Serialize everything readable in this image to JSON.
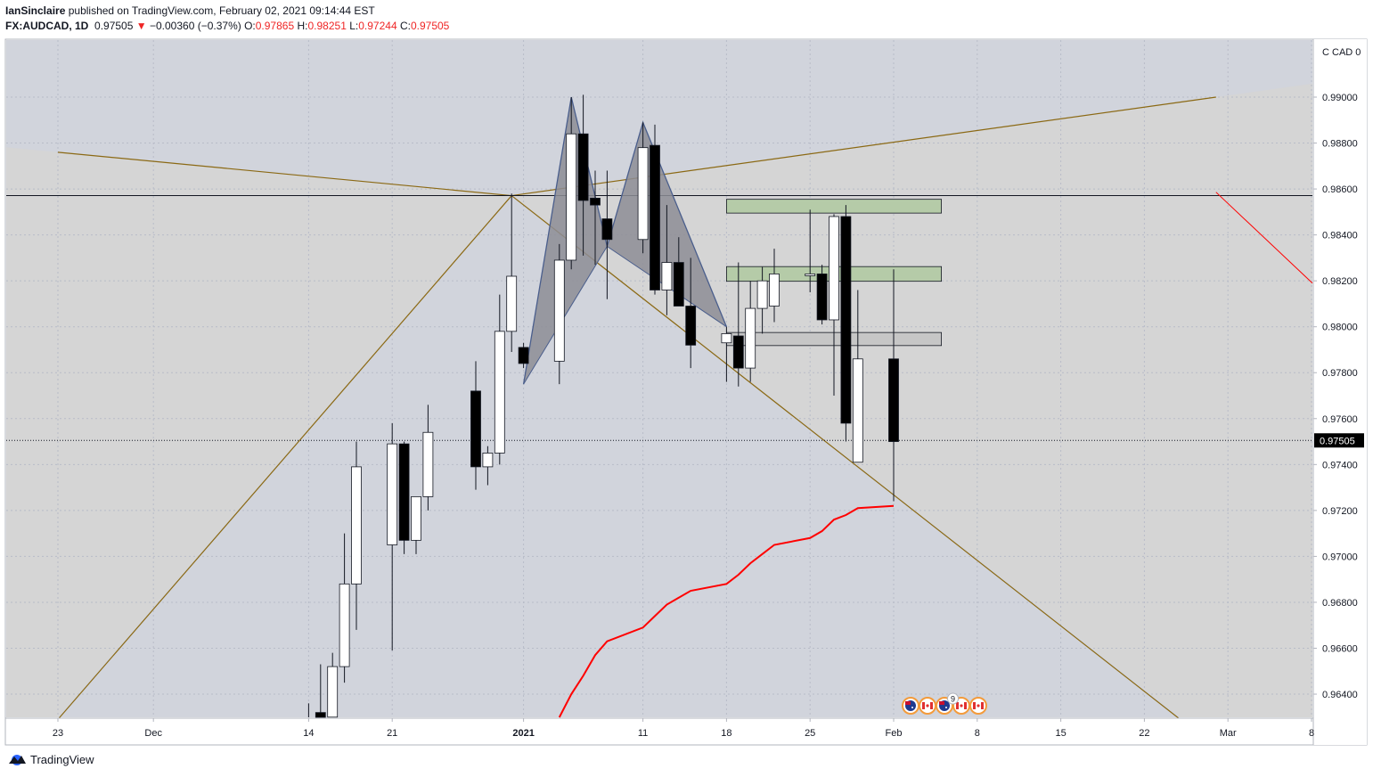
{
  "header": {
    "author": "IanSinclaire",
    "published_text": "published on TradingView.com, February 02, 2021 09:14:44 EST",
    "symbol": "FX:AUDCAD, 1D",
    "last": "0.97505",
    "change_arrow": "▼",
    "change": "−0.00360 (−0.37%)",
    "o_label": "O:",
    "o_value": "0.97865",
    "h_label": "H:",
    "h_value": "0.98251",
    "l_label": "L:",
    "l_value": "0.97244",
    "c_label": "C:",
    "c_value": "0.97505"
  },
  "footer": {
    "brand": "TradingView"
  },
  "colors": {
    "background": "#d1d4dc",
    "shaded_region": "#d5d5d5",
    "bull_body": "#ffffff",
    "bear_body": "#000000",
    "trendline": "#8b6914",
    "ema": "#ff0000",
    "green_zone": "#b5cba8",
    "grey_zone": "#c6c6c6",
    "pattern_fill": "#8d8d95",
    "pattern_line": "#4a5e8c",
    "price_tag": "#000000"
  },
  "icons": [
    "australia-flag-icon",
    "canada-flag-icon",
    "australia-flag-icon",
    "canada-flag-icon",
    "canada-flag-icon"
  ],
  "event_badge": "9",
  "chart_data": {
    "type": "candlestick",
    "symbol": "FX:AUDCAD",
    "interval": "1D",
    "y_axis": {
      "currency": "CAD",
      "unit_label": "CAD",
      "range": [
        0.9629,
        0.994
      ],
      "ticks": [
        "0.99000",
        "0.98800",
        "0.98600",
        "0.98400",
        "0.98200",
        "0.98000",
        "0.97800",
        "0.97600",
        "0.97400",
        "0.97200",
        "0.97000",
        "0.96800",
        "0.96600",
        "0.96400"
      ]
    },
    "x_axis": {
      "ticks": [
        {
          "label": "23",
          "date": "2020-11-23"
        },
        {
          "label": "Dec",
          "date": "2020-12-01"
        },
        {
          "label": "14",
          "date": "2020-12-14"
        },
        {
          "label": "21",
          "date": "2020-12-21"
        },
        {
          "label": "2021",
          "date": "2021-01-01",
          "bold": true
        },
        {
          "label": "11",
          "date": "2021-01-11"
        },
        {
          "label": "18",
          "date": "2021-01-18"
        },
        {
          "label": "25",
          "date": "2021-01-25"
        },
        {
          "label": "Feb",
          "date": "2021-02-01"
        },
        {
          "label": "8",
          "date": "2021-02-08"
        },
        {
          "label": "15",
          "date": "2021-02-15"
        },
        {
          "label": "22",
          "date": "2021-02-22"
        },
        {
          "label": "Mar",
          "date": "2021-03-01"
        },
        {
          "label": "8",
          "date": "2021-03-08"
        }
      ]
    },
    "grid": true,
    "last_price": "0.97505",
    "horizontal_level": 0.98571,
    "candles": [
      {
        "date": "2020-12-14",
        "o": 0.9625,
        "h": 0.9636,
        "l": 0.9612,
        "c": 0.9618
      },
      {
        "date": "2020-12-15",
        "o": 0.9632,
        "h": 0.9653,
        "l": 0.9614,
        "c": 0.9628
      },
      {
        "date": "2020-12-16",
        "o": 0.963,
        "h": 0.9658,
        "l": 0.9622,
        "c": 0.9652
      },
      {
        "date": "2020-12-17",
        "o": 0.9652,
        "h": 0.971,
        "l": 0.9645,
        "c": 0.9688
      },
      {
        "date": "2020-12-18",
        "o": 0.9688,
        "h": 0.975,
        "l": 0.9668,
        "c": 0.9739
      },
      {
        "date": "2020-12-21",
        "o": 0.9705,
        "h": 0.9758,
        "l": 0.9659,
        "c": 0.9749
      },
      {
        "date": "2020-12-22",
        "o": 0.9749,
        "h": 0.975,
        "l": 0.9701,
        "c": 0.9707
      },
      {
        "date": "2020-12-23",
        "o": 0.9707,
        "h": 0.9725,
        "l": 0.9701,
        "c": 0.9726
      },
      {
        "date": "2020-12-24",
        "o": 0.9726,
        "h": 0.9766,
        "l": 0.972,
        "c": 0.9754
      },
      {
        "date": "2020-12-28",
        "o": 0.9772,
        "h": 0.9785,
        "l": 0.9729,
        "c": 0.9739
      },
      {
        "date": "2020-12-29",
        "o": 0.9739,
        "h": 0.9748,
        "l": 0.9731,
        "c": 0.9745
      },
      {
        "date": "2020-12-30",
        "o": 0.9745,
        "h": 0.9814,
        "l": 0.974,
        "c": 0.9798
      },
      {
        "date": "2020-12-31",
        "o": 0.9798,
        "h": 0.9858,
        "l": 0.9789,
        "c": 0.9822
      },
      {
        "date": "2021-01-01",
        "o": 0.9791,
        "h": 0.9793,
        "l": 0.9782,
        "c": 0.9784
      },
      {
        "date": "2021-01-04",
        "o": 0.9785,
        "h": 0.9836,
        "l": 0.9775,
        "c": 0.9829
      },
      {
        "date": "2021-01-05",
        "o": 0.9829,
        "h": 0.99,
        "l": 0.9825,
        "c": 0.9884
      },
      {
        "date": "2021-01-06",
        "o": 0.9884,
        "h": 0.9901,
        "l": 0.9831,
        "c": 0.9855
      },
      {
        "date": "2021-01-07",
        "o": 0.9856,
        "h": 0.9868,
        "l": 0.9827,
        "c": 0.9853
      },
      {
        "date": "2021-01-08",
        "o": 0.9847,
        "h": 0.9868,
        "l": 0.9812,
        "c": 0.9838
      },
      {
        "date": "2021-01-11",
        "o": 0.9838,
        "h": 0.9889,
        "l": 0.9832,
        "c": 0.9878
      },
      {
        "date": "2021-01-12",
        "o": 0.9879,
        "h": 0.9888,
        "l": 0.9814,
        "c": 0.9816
      },
      {
        "date": "2021-01-13",
        "o": 0.9816,
        "h": 0.9853,
        "l": 0.9805,
        "c": 0.9828
      },
      {
        "date": "2021-01-14",
        "o": 0.9828,
        "h": 0.9839,
        "l": 0.981,
        "c": 0.9809
      },
      {
        "date": "2021-01-15",
        "o": 0.9809,
        "h": 0.983,
        "l": 0.9782,
        "c": 0.9792
      },
      {
        "date": "2021-01-18",
        "o": 0.9793,
        "h": 0.98,
        "l": 0.9776,
        "c": 0.9797
      },
      {
        "date": "2021-01-19",
        "o": 0.9796,
        "h": 0.9828,
        "l": 0.9774,
        "c": 0.9782
      },
      {
        "date": "2021-01-20",
        "o": 0.9782,
        "h": 0.982,
        "l": 0.9776,
        "c": 0.9808
      },
      {
        "date": "2021-01-21",
        "o": 0.9808,
        "h": 0.9826,
        "l": 0.9797,
        "c": 0.982
      },
      {
        "date": "2021-01-22",
        "o": 0.9809,
        "h": 0.9834,
        "l": 0.9802,
        "c": 0.9823
      },
      {
        "date": "2021-01-25",
        "o": 0.9823,
        "h": 0.9851,
        "l": 0.9815,
        "c": 0.9823
      },
      {
        "date": "2021-01-26",
        "o": 0.9823,
        "h": 0.9827,
        "l": 0.9801,
        "c": 0.9803
      },
      {
        "date": "2021-01-27",
        "o": 0.9803,
        "h": 0.9849,
        "l": 0.977,
        "c": 0.9848
      },
      {
        "date": "2021-01-28",
        "o": 0.9848,
        "h": 0.9853,
        "l": 0.975,
        "c": 0.9758
      },
      {
        "date": "2021-01-29",
        "o": 0.9741,
        "h": 0.9816,
        "l": 0.9741,
        "c": 0.9786
      },
      {
        "date": "2021-02-01",
        "o": 0.9786,
        "h": 0.9825,
        "l": 0.9724,
        "c": 0.975
      }
    ],
    "ema": [
      {
        "date": "2021-01-04",
        "v": 0.9629
      },
      {
        "date": "2021-01-05",
        "v": 0.964
      },
      {
        "date": "2021-01-06",
        "v": 0.9648
      },
      {
        "date": "2021-01-07",
        "v": 0.9657
      },
      {
        "date": "2021-01-08",
        "v": 0.9663
      },
      {
        "date": "2021-01-11",
        "v": 0.9669
      },
      {
        "date": "2021-01-12",
        "v": 0.9674
      },
      {
        "date": "2021-01-13",
        "v": 0.9679
      },
      {
        "date": "2021-01-14",
        "v": 0.9682
      },
      {
        "date": "2021-01-15",
        "v": 0.9685
      },
      {
        "date": "2021-01-18",
        "v": 0.9688
      },
      {
        "date": "2021-01-19",
        "v": 0.9692
      },
      {
        "date": "2021-01-20",
        "v": 0.9697
      },
      {
        "date": "2021-01-21",
        "v": 0.9701
      },
      {
        "date": "2021-01-22",
        "v": 0.9705
      },
      {
        "date": "2021-01-25",
        "v": 0.9708
      },
      {
        "date": "2021-01-26",
        "v": 0.9711
      },
      {
        "date": "2021-01-27",
        "v": 0.9716
      },
      {
        "date": "2021-01-28",
        "v": 0.9718
      },
      {
        "date": "2021-01-29",
        "v": 0.9721
      },
      {
        "date": "2021-02-01",
        "v": 0.9722
      }
    ],
    "zones": [
      {
        "kind": "green",
        "from": "2021-01-18",
        "to": "2021-02-05",
        "top": 0.98555,
        "bottom": 0.98495
      },
      {
        "kind": "green",
        "from": "2021-01-18",
        "to": "2021-02-05",
        "top": 0.98262,
        "bottom": 0.98198
      },
      {
        "kind": "grey",
        "from": "2021-01-18",
        "to": "2021-02-05",
        "top": 0.97975,
        "bottom": 0.97918
      }
    ],
    "trendlines": [
      {
        "from": {
          "date": "2020-12-31",
          "price": 0.98571
        },
        "to": {
          "date": "2020-11-23",
          "price": 0.9629
        }
      },
      {
        "from": {
          "date": "2020-12-31",
          "price": 0.98571
        },
        "to": {
          "date": "2021-02-28",
          "price": 0.99
        }
      },
      {
        "from": {
          "date": "2020-12-31",
          "price": 0.98571
        },
        "to": {
          "date": "2020-11-23",
          "price": 0.9876
        }
      },
      {
        "from": {
          "date": "2020-12-31",
          "price": 0.98571
        },
        "to": {
          "date": "2021-02-25",
          "price": 0.9629
        }
      }
    ],
    "red_segment": {
      "from": {
        "date": "2021-02-28",
        "price": 0.98586
      },
      "to": {
        "date": "2021-03-12",
        "price": 0.9819
      }
    },
    "pattern": [
      {
        "date": "2021-01-01",
        "price": 0.9775
      },
      {
        "date": "2021-01-05",
        "price": 0.99
      },
      {
        "date": "2021-01-08",
        "price": 0.9835
      },
      {
        "date": "2021-01-11",
        "price": 0.9889
      },
      {
        "date": "2021-01-18",
        "price": 0.98
      }
    ]
  }
}
